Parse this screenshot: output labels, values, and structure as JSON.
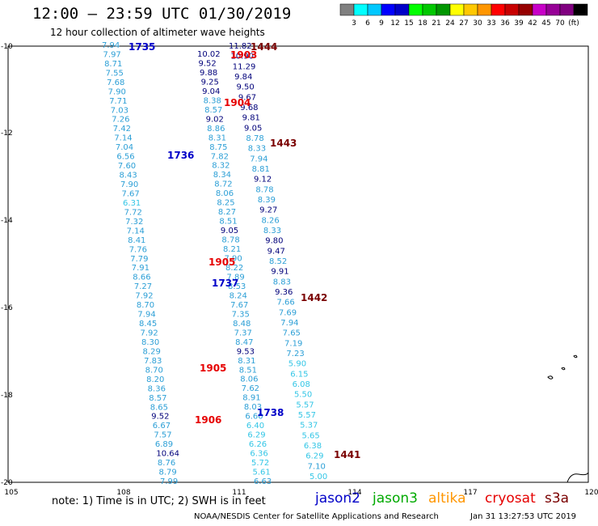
{
  "header": {
    "title": "12:00 – 23:59 UTC 01/30/2019",
    "subtitle": "12 hour collection of altimeter wave heights"
  },
  "colorbar": {
    "colors": [
      "#808080",
      "#00ffff",
      "#00c8ff",
      "#0000ff",
      "#0000c8",
      "#00ff00",
      "#00c800",
      "#009600",
      "#ffff00",
      "#ffc800",
      "#ff9600",
      "#ff0000",
      "#c80000",
      "#960000",
      "#c800c8",
      "#960096",
      "#800080",
      "#000000"
    ],
    "labels": [
      "3",
      "6",
      "9",
      "12",
      "15",
      "18",
      "21",
      "24",
      "27",
      "30",
      "33",
      "36",
      "39",
      "42",
      "45",
      "70",
      "(ft)"
    ]
  },
  "axes": {
    "x_ticks": [
      "105",
      "108",
      "111",
      "114",
      "117",
      "120"
    ],
    "y_ticks": [
      "-10",
      "-12",
      "-14",
      "-16",
      "-18",
      "-20"
    ]
  },
  "track_colors": {
    "light": "#2c9fd6",
    "mid": "#0a6bcc",
    "dark": "#00007a"
  },
  "labels": [
    {
      "text": "1735",
      "color": "#0000c8"
    },
    {
      "text": "1444",
      "color": "#7a0000"
    },
    {
      "text": "1903",
      "color": "#e60000"
    },
    {
      "text": "1904",
      "color": "#e60000"
    },
    {
      "text": "1443",
      "color": "#7a0000"
    },
    {
      "text": "1736",
      "color": "#0000c8"
    },
    {
      "text": "1905",
      "color": "#e60000"
    },
    {
      "text": "1737",
      "color": "#0000c8"
    },
    {
      "text": "1442",
      "color": "#7a0000"
    },
    {
      "text": "1905",
      "color": "#e60000"
    },
    {
      "text": "1738",
      "color": "#0000c8"
    },
    {
      "text": "1906",
      "color": "#e60000"
    },
    {
      "text": "1441",
      "color": "#7a0000"
    }
  ],
  "tracks": [
    {
      "name": "t1",
      "values": [
        "7.94",
        "7.97",
        "8.71",
        "7.55",
        "7.68",
        "7.90",
        "7.71",
        "7.03",
        "7.26",
        "7.42",
        "7.14",
        "7.04",
        "6.56",
        "7.60",
        "8.43",
        "7.90",
        "7.67",
        "6.31",
        "7.72",
        "7.32",
        "7.14",
        "8.41",
        "7.76",
        "7.79",
        "7.91",
        "8.66",
        "7.27",
        "7.92",
        "8.70",
        "7.94",
        "8.45",
        "7.92",
        "8.30",
        "8.29",
        "7.83",
        "8.70",
        "8.20",
        "8.36",
        "8.57",
        "8.65",
        "9.52",
        "6.67",
        "7.57",
        "6.89",
        "10.64",
        "8.76",
        "8.79",
        "7.99"
      ]
    },
    {
      "name": "t2",
      "values": [
        "10.02",
        "9.52",
        "9.88",
        "9.25",
        "9.04",
        "8.38",
        "8.57",
        "9.02",
        "8.86",
        "8.31",
        "8.75",
        "7.82",
        "8.32",
        "8.34",
        "8.72",
        "8.06",
        "8.25",
        "8.27",
        "8.51",
        "9.05",
        "8.78",
        "8.21",
        "7.90",
        "8.22",
        "7.89",
        "8.53",
        "8.24",
        "7.67",
        "7.35",
        "8.48",
        "7.37",
        "8.47",
        "9.53",
        "8.31",
        "8.51",
        "8.06",
        "7.62",
        "8.91",
        "8.03",
        "6.60",
        "6.40",
        "6.29",
        "6.26",
        "6.36",
        "5.72",
        "5.61",
        "6.63"
      ]
    },
    {
      "name": "t3",
      "values": [
        "11.82",
        "10.90",
        "11.29",
        "9.84",
        "9.50",
        "9.67",
        "9.68",
        "9.81",
        "9.05",
        "8.78",
        "8.33",
        "7.94",
        "8.81",
        "9.12",
        "8.78",
        "8.39",
        "9.27",
        "8.26",
        "8.33",
        "9.80",
        "9.47",
        "8.52",
        "9.91",
        "8.83",
        "9.36",
        "7.66",
        "7.69",
        "7.94",
        "7.65",
        "7.19",
        "7.23",
        "5.90",
        "6.15",
        "6.08",
        "5.50",
        "5.57",
        "5.57",
        "5.37",
        "5.65",
        "6.38",
        "6.29",
        "7.10",
        "5.00"
      ]
    }
  ],
  "legend": {
    "note": "note:  1) Time is in UTC;  2) SWH is in feet",
    "satellites": [
      {
        "name": "jason2",
        "color": "#0000c8"
      },
      {
        "name": "jason3",
        "color": "#00aa00"
      },
      {
        "name": "altika",
        "color": "#ff9600"
      },
      {
        "name": "cryosat",
        "color": "#e60000"
      },
      {
        "name": "s3a",
        "color": "#7a0000"
      }
    ]
  },
  "footer": {
    "credit": "NOAA/NESDIS Center for Satellite Applications and Research",
    "timestamp": "Jan 31 13:27:53 UTC 2019"
  }
}
